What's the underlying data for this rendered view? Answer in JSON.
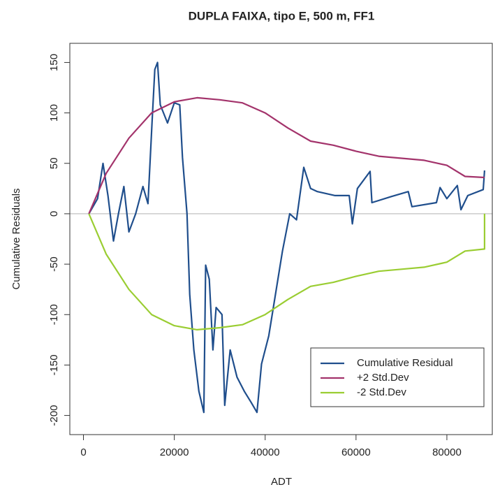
{
  "chart_data": {
    "type": "line",
    "title": "DUPLA FAIXA, tipo E, 500 m, FF1",
    "xlabel": "ADT",
    "ylabel": "Cumulative Residuals",
    "xlim": [
      -3000,
      90000
    ],
    "xticks": [
      0,
      20000,
      40000,
      60000,
      80000
    ],
    "ylim": [
      -219,
      169
    ],
    "yticks": [
      -200,
      -150,
      -100,
      -50,
      0,
      50,
      100,
      150
    ],
    "hlines": [
      0
    ],
    "legend": "bottom-right",
    "series": [
      {
        "name": "Cumulative Residual",
        "color": "#1f4e8c",
        "x": [
          1200,
          3100,
          4300,
          5400,
          6600,
          7700,
          8900,
          10000,
          11500,
          13100,
          14200,
          15100,
          15700,
          16300,
          16900,
          18500,
          20000,
          21200,
          21800,
          22800,
          23400,
          24300,
          25400,
          26500,
          26900,
          27700,
          28500,
          29200,
          30500,
          31100,
          32300,
          33800,
          35400,
          36900,
          38200,
          39200,
          40800,
          42300,
          43800,
          45400,
          46900,
          48500,
          50000,
          51500,
          55400,
          58500,
          59200,
          60300,
          63100,
          63500,
          67700,
          71500,
          72300,
          77700,
          78500,
          80000,
          82300,
          83100,
          84600,
          88000,
          88300
        ],
        "values": [
          0,
          15,
          50,
          18,
          -27,
          0,
          27,
          -18,
          0,
          27,
          10,
          90,
          143,
          150,
          108,
          90,
          110,
          108,
          56,
          0,
          -80,
          -135,
          -176,
          -197,
          -51,
          -65,
          -135,
          -93,
          -100,
          -190,
          -135,
          -162,
          -176,
          -187,
          -197,
          -149,
          -121,
          -79,
          -37,
          0,
          -6,
          46,
          25,
          22,
          18,
          18,
          -10,
          25,
          42,
          11,
          17,
          22,
          7,
          11,
          26,
          15,
          28,
          4,
          18,
          24,
          43
        ]
      },
      {
        "name": "+2 Std.Dev",
        "color": "#a3336b",
        "x": [
          1200,
          5000,
          10000,
          15000,
          20000,
          25000,
          30000,
          35000,
          40000,
          45000,
          50000,
          55000,
          60000,
          65000,
          70000,
          75000,
          80000,
          84000,
          88300
        ],
        "values": [
          0,
          40,
          75,
          100,
          111,
          115,
          113,
          110,
          100,
          85,
          72,
          68,
          62,
          57,
          55,
          53,
          48,
          37,
          36
        ]
      },
      {
        "name": "-2 Std.Dev",
        "color": "#9acd32",
        "x": [
          1200,
          5000,
          10000,
          15000,
          20000,
          25000,
          30000,
          35000,
          40000,
          45000,
          50000,
          55000,
          60000,
          65000,
          70000,
          75000,
          80000,
          84000,
          88300,
          88300
        ],
        "values": [
          0,
          -40,
          -75,
          -100,
          -111,
          -115,
          -113,
          -110,
          -100,
          -85,
          -72,
          -68,
          -62,
          -57,
          -55,
          -53,
          -48,
          -37,
          -35,
          0
        ]
      }
    ]
  }
}
